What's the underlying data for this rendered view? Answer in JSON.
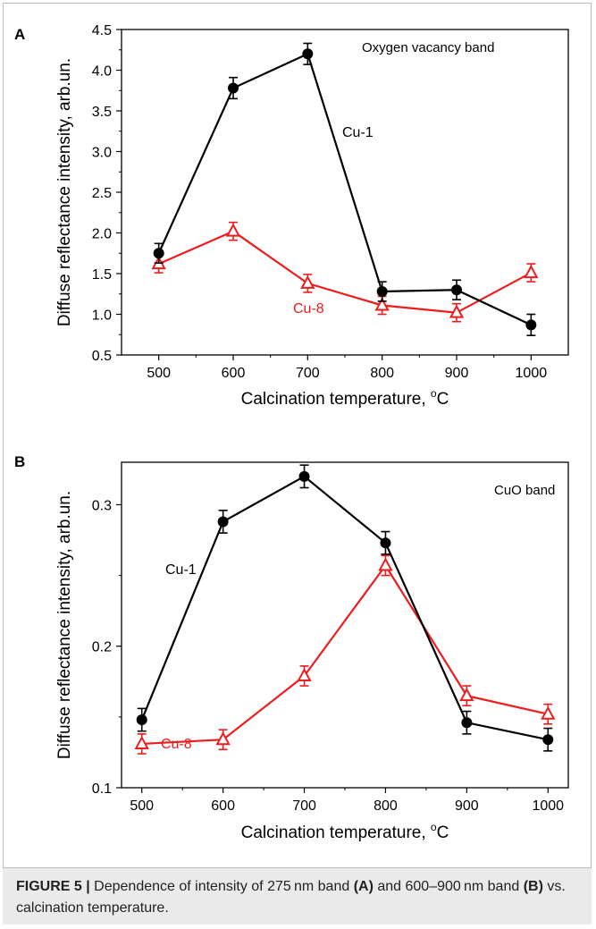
{
  "caption": {
    "label": "FIGURE 5 |",
    "t1": " Dependence of intensity of 275 nm band ",
    "a": "(A)",
    "t2": " and 600–900 nm band ",
    "b": "(B)",
    "t3": " vs. calcination temperature."
  },
  "colors": {
    "cu1": "#000000",
    "cu8": "#ee1c1c"
  },
  "chart_data": [
    {
      "panel": "A",
      "type": "line",
      "annotation": "Oxygen vacancy band",
      "xlabel": "Calcination temperature, °C",
      "xlabel_main": "Calcination temperature, ",
      "xlabel_unit": "C",
      "ylabel": "Diffuse reflectance intensity, arb.un.",
      "xlim": [
        450,
        1050
      ],
      "ylim": [
        0.5,
        4.5
      ],
      "x": [
        500,
        600,
        700,
        800,
        900,
        1000
      ],
      "xticks": [
        500,
        600,
        700,
        800,
        900,
        1000
      ],
      "xtick_labels": [
        "500",
        "600",
        "700",
        "800",
        "900",
        "1000"
      ],
      "yticks": [
        0.5,
        1.0,
        1.5,
        2.0,
        2.5,
        3.0,
        3.5,
        4.0,
        4.5
      ],
      "ytick_labels": [
        "0.5",
        "1.0",
        "1.5",
        "2.0",
        "2.5",
        "3.0",
        "3.5",
        "4.0",
        "4.5"
      ],
      "series": [
        {
          "name": "Cu-1",
          "color": "#000000",
          "marker": "circle",
          "values": [
            1.75,
            3.78,
            4.2,
            1.28,
            1.3,
            0.87
          ],
          "errors": [
            0.12,
            0.13,
            0.13,
            0.12,
            0.12,
            0.13
          ]
        },
        {
          "name": "Cu-8",
          "color": "#ee1c1c",
          "marker": "triangle-open",
          "values": [
            1.62,
            2.02,
            1.38,
            1.11,
            1.02,
            1.51
          ],
          "errors": [
            0.11,
            0.11,
            0.11,
            0.11,
            0.11,
            0.11
          ]
        }
      ]
    },
    {
      "panel": "B",
      "type": "line",
      "annotation": "CuO band",
      "xlabel": "Calcination temperature, °C",
      "xlabel_main": "Calcination temperature, ",
      "xlabel_unit": "C",
      "ylabel": "Diffuse reflectance intensity, arb.un.",
      "xlim": [
        475,
        1025
      ],
      "ylim": [
        0.1,
        0.33
      ],
      "x": [
        500,
        600,
        700,
        800,
        900,
        1000
      ],
      "xticks": [
        500,
        600,
        700,
        800,
        900,
        1000
      ],
      "xtick_labels": [
        "500",
        "600",
        "700",
        "800",
        "900",
        "1000"
      ],
      "yticks": [
        0.1,
        0.2,
        0.3
      ],
      "ytick_labels": [
        "0.1",
        "0.2",
        "0.3"
      ],
      "series": [
        {
          "name": "Cu-1",
          "color": "#000000",
          "marker": "circle",
          "values": [
            0.148,
            0.288,
            0.32,
            0.273,
            0.146,
            0.134
          ],
          "errors": [
            0.008,
            0.008,
            0.008,
            0.008,
            0.008,
            0.008
          ]
        },
        {
          "name": "Cu-8",
          "color": "#ee1c1c",
          "marker": "triangle-open",
          "values": [
            0.131,
            0.134,
            0.179,
            0.257,
            0.165,
            0.152
          ],
          "errors": [
            0.007,
            0.007,
            0.007,
            0.007,
            0.007,
            0.007
          ]
        }
      ]
    }
  ]
}
